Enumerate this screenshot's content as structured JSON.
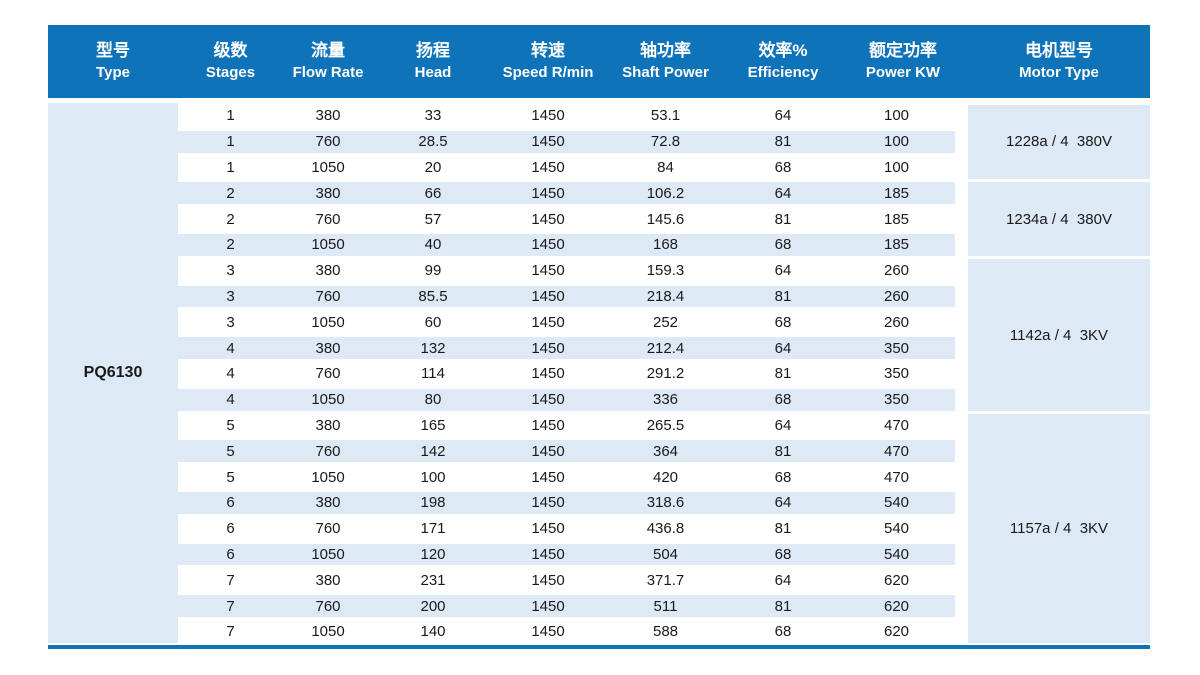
{
  "table": {
    "type_label": "PQ6130",
    "columns": [
      {
        "zh": "型号",
        "en": "Type"
      },
      {
        "zh": "级数",
        "en": "Stages"
      },
      {
        "zh": "流量",
        "en": "Flow Rate"
      },
      {
        "zh": "扬程",
        "en": "Head"
      },
      {
        "zh": "转速",
        "en": "Speed R/min"
      },
      {
        "zh": "轴功率",
        "en": "Shaft Power"
      },
      {
        "zh": "效率%",
        "en": "Efficiency"
      },
      {
        "zh": "额定功率",
        "en": "Power KW"
      },
      {
        "zh": "电机型号",
        "en": "Motor Type"
      }
    ],
    "rows": [
      [
        "1",
        "380",
        "33",
        "1450",
        "53.1",
        "64",
        "100"
      ],
      [
        "1",
        "760",
        "28.5",
        "1450",
        "72.8",
        "81",
        "100"
      ],
      [
        "1",
        "1050",
        "20",
        "1450",
        "84",
        "68",
        "100"
      ],
      [
        "2",
        "380",
        "66",
        "1450",
        "106.2",
        "64",
        "185"
      ],
      [
        "2",
        "760",
        "57",
        "1450",
        "145.6",
        "81",
        "185"
      ],
      [
        "2",
        "1050",
        "40",
        "1450",
        "168",
        "68",
        "185"
      ],
      [
        "3",
        "380",
        "99",
        "1450",
        "159.3",
        "64",
        "260"
      ],
      [
        "3",
        "760",
        "85.5",
        "1450",
        "218.4",
        "81",
        "260"
      ],
      [
        "3",
        "1050",
        "60",
        "1450",
        "252",
        "68",
        "260"
      ],
      [
        "4",
        "380",
        "132",
        "1450",
        "212.4",
        "64",
        "350"
      ],
      [
        "4",
        "760",
        "114",
        "1450",
        "291.2",
        "81",
        "350"
      ],
      [
        "4",
        "1050",
        "80",
        "1450",
        "336",
        "68",
        "350"
      ],
      [
        "5",
        "380",
        "165",
        "1450",
        "265.5",
        "64",
        "470"
      ],
      [
        "5",
        "760",
        "142",
        "1450",
        "364",
        "81",
        "470"
      ],
      [
        "5",
        "1050",
        "100",
        "1450",
        "420",
        "68",
        "470"
      ],
      [
        "6",
        "380",
        "198",
        "1450",
        "318.6",
        "64",
        "540"
      ],
      [
        "6",
        "760",
        "171",
        "1450",
        "436.8",
        "81",
        "540"
      ],
      [
        "6",
        "1050",
        "120",
        "1450",
        "504",
        "68",
        "540"
      ],
      [
        "7",
        "380",
        "231",
        "1450",
        "371.7",
        "64",
        "620"
      ],
      [
        "7",
        "760",
        "200",
        "1450",
        "511",
        "81",
        "620"
      ],
      [
        "7",
        "1050",
        "140",
        "1450",
        "588",
        "68",
        "620"
      ]
    ],
    "motor_groups": [
      {
        "label": "1228a / 4  380V",
        "row_start": 0,
        "row_span": 3
      },
      {
        "label": "1234a / 4  380V",
        "row_start": 3,
        "row_span": 3
      },
      {
        "label": "1142a / 4  3KV",
        "row_start": 6,
        "row_span": 6
      },
      {
        "label": "1157a / 4  3KV",
        "row_start": 12,
        "row_span": 9
      }
    ],
    "colors": {
      "header_bg": "#0f73ba",
      "header_text": "#ffffff",
      "stripe_bg": "#dde9f5",
      "rule": "#0f73ba",
      "body_text": "#1a1a1a"
    }
  }
}
